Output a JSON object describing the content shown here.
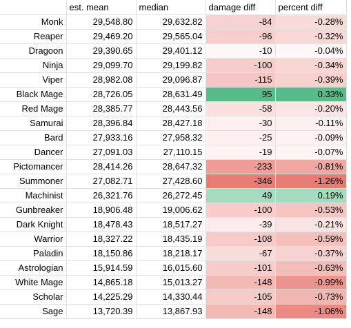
{
  "headers": [
    "",
    "est. mean",
    "median",
    "damage diff",
    "percent diff"
  ],
  "rows": [
    {
      "job": "Monk",
      "mean": "29,548.80",
      "median": "29,632.82",
      "dmg": "-84",
      "pct": "-0.28%",
      "dmg_color": "#f6d2d0",
      "pct_color": "#f8dcda"
    },
    {
      "job": "Reaper",
      "mean": "29,469.20",
      "median": "29,565.04",
      "dmg": "-96",
      "pct": "-0.32%",
      "dmg_color": "#f6cfcc",
      "pct_color": "#f7d8d6"
    },
    {
      "job": "Dragoon",
      "mean": "29,390.65",
      "median": "29,401.12",
      "dmg": "-10",
      "pct": "-0.04%",
      "dmg_color": "#fdf8f8",
      "pct_color": "#fdf7f7"
    },
    {
      "job": "Ninja",
      "mean": "29,099.70",
      "median": "29,199.82",
      "dmg": "-100",
      "pct": "-0.34%",
      "dmg_color": "#f6cdca",
      "pct_color": "#f7d6d4"
    },
    {
      "job": "Viper",
      "mean": "28,982.08",
      "median": "29,096.87",
      "dmg": "-115",
      "pct": "-0.39%",
      "dmg_color": "#f5c7c4",
      "pct_color": "#f6d2cf"
    },
    {
      "job": "Black Mage",
      "mean": "28,726.05",
      "median": "28,631.49",
      "dmg": "95",
      "pct": "0.33%",
      "dmg_color": "#57bb8a",
      "pct_color": "#57bb8a"
    },
    {
      "job": "Red Mage",
      "mean": "28,385.77",
      "median": "28,443.56",
      "dmg": "-58",
      "pct": "-0.20%",
      "dmg_color": "#f9e1df",
      "pct_color": "#fae5e4"
    },
    {
      "job": "Samurai",
      "mean": "28,396.84",
      "median": "28,427.18",
      "dmg": "-30",
      "pct": "-0.11%",
      "dmg_color": "#fcefee",
      "pct_color": "#fcf0ef"
    },
    {
      "job": "Bard",
      "mean": "27,933.16",
      "median": "27,958.32",
      "dmg": "-25",
      "pct": "-0.09%",
      "dmg_color": "#fcf1f0",
      "pct_color": "#fcf2f1"
    },
    {
      "job": "Dancer",
      "mean": "27,091.03",
      "median": "27,110.15",
      "dmg": "-19",
      "pct": "-0.07%",
      "dmg_color": "#fdf4f4",
      "pct_color": "#fdf5f4"
    },
    {
      "job": "Pictomancer",
      "mean": "28,414.26",
      "median": "28,647.32",
      "dmg": "-233",
      "pct": "-0.81%",
      "dmg_color": "#ee9e97",
      "pct_color": "#f0a8a2"
    },
    {
      "job": "Summoner",
      "mean": "27,082.71",
      "median": "27,428.60",
      "dmg": "-346",
      "pct": "-1.26%",
      "dmg_color": "#e67c73",
      "pct_color": "#e67c73"
    },
    {
      "job": "Machinist",
      "mean": "26,321.76",
      "median": "26,272.45",
      "dmg": "49",
      "pct": "0.19%",
      "dmg_color": "#a5dbbf",
      "pct_color": "#a3dbbe"
    },
    {
      "job": "Gunbreaker",
      "mean": "18,906.48",
      "median": "19,006.62",
      "dmg": "-100",
      "pct": "-0.53%",
      "dmg_color": "#f6cdca",
      "pct_color": "#f4c4c0"
    },
    {
      "job": "Dark Knight",
      "mean": "18,478.43",
      "median": "18,517.27",
      "dmg": "-39",
      "pct": "-0.21%",
      "dmg_color": "#fbebea",
      "pct_color": "#fae4e3"
    },
    {
      "job": "Warrior",
      "mean": "18,327.22",
      "median": "18,435.19",
      "dmg": "-108",
      "pct": "-0.59%",
      "dmg_color": "#f5cac7",
      "pct_color": "#f3c0bc"
    },
    {
      "job": "Paladin",
      "mean": "18,150.86",
      "median": "18,218.17",
      "dmg": "-67",
      "pct": "-0.37%",
      "dmg_color": "#f8dcda",
      "pct_color": "#f6d3d1"
    },
    {
      "job": "Astrologian",
      "mean": "15,914.59",
      "median": "16,015.60",
      "dmg": "-101",
      "pct": "-0.63%",
      "dmg_color": "#f6cdca",
      "pct_color": "#f3bdb9"
    },
    {
      "job": "White Mage",
      "mean": "14,865.18",
      "median": "15,013.27",
      "dmg": "-148",
      "pct": "-0.99%",
      "dmg_color": "#f3b9b4",
      "pct_color": "#eb958e"
    },
    {
      "job": "Scholar",
      "mean": "14,225.29",
      "median": "14,330.44",
      "dmg": "-105",
      "pct": "-0.73%",
      "dmg_color": "#f5cbc8",
      "pct_color": "#f2b6b1"
    },
    {
      "job": "Sage",
      "mean": "13,720.39",
      "median": "13,867.93",
      "dmg": "-148",
      "pct": "-1.06%",
      "dmg_color": "#f3b9b4",
      "pct_color": "#ea8a82"
    }
  ]
}
